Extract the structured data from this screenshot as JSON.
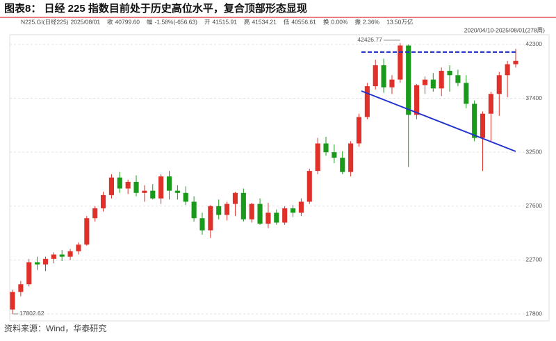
{
  "chart_data": {
    "type": "candlestick",
    "title": "图表8：  日经 225 指数目前处于历史高位水平，复合顶部形态显现",
    "info": [
      {
        "label": "N225.GI(日经225)",
        "value": "2025/08/01"
      },
      {
        "label": "收",
        "value": "40799.60"
      },
      {
        "label": "幅",
        "value": "-1.58%(-656.63)"
      },
      {
        "label": "开",
        "value": "41515.91"
      },
      {
        "label": "高",
        "value": "41534.21"
      },
      {
        "label": "低",
        "value": "40556.61"
      },
      {
        "label": "换",
        "value": "0.00%"
      },
      {
        "label": "振",
        "value": "2.36%"
      },
      {
        "label": "13.50万亿",
        "value": null
      }
    ],
    "range": "2020/04/10-2025/08/01(278周)",
    "source": "资料来源：Wind，华泰研究",
    "up_color": "#e0302a",
    "down_color": "#1a9a1a",
    "grid": true,
    "ylim": [
      17170,
      43180
    ],
    "yticks": [
      17800,
      22700,
      27600,
      32500,
      37400,
      42300
    ],
    "open": [
      18200,
      19800,
      20500,
      22500,
      22300,
      22800,
      23200,
      23000,
      23500,
      24100,
      26500,
      27400,
      28600,
      30200,
      29200,
      29800,
      28800,
      29000,
      28300,
      30300,
      29000,
      28800,
      28000,
      26500,
      25400,
      27600,
      26800,
      27800,
      28800,
      26400,
      27800,
      26000,
      27000,
      26100,
      27400,
      27000,
      28000,
      30800,
      33300,
      32500,
      32000,
      30700,
      33300,
      35700,
      38500,
      40400,
      38400,
      39100,
      42200,
      35900,
      38600,
      39100,
      38300,
      39900,
      39500,
      38800,
      36900,
      33800,
      36000,
      37800,
      39500,
      40500
    ],
    "high": [
      20000,
      20800,
      22800,
      23000,
      23000,
      23400,
      23600,
      23700,
      24300,
      26700,
      27600,
      28900,
      30500,
      30700,
      30000,
      30400,
      29500,
      29600,
      30500,
      30800,
      29500,
      29400,
      28500,
      27000,
      27700,
      28200,
      28000,
      28900,
      29200,
      27900,
      28300,
      27900,
      27300,
      27600,
      27700,
      28300,
      31000,
      33800,
      33900,
      33200,
      32600,
      33500,
      36000,
      38800,
      40900,
      41000,
      39500,
      42426.77,
      42300,
      38700,
      39400,
      39700,
      40200,
      40400,
      40000,
      39500,
      37200,
      36200,
      38000,
      39800,
      40800,
      41900
    ],
    "low": [
      17802.62,
      19400,
      20300,
      21800,
      21700,
      22400,
      22600,
      22700,
      23200,
      24000,
      26200,
      27100,
      28300,
      28800,
      28700,
      28500,
      28000,
      28200,
      27800,
      28200,
      28200,
      27700,
      26200,
      25000,
      24700,
      26400,
      26300,
      26700,
      26200,
      26100,
      25900,
      25600,
      25900,
      25900,
      26600,
      26700,
      27800,
      30500,
      32200,
      31500,
      30500,
      30300,
      33000,
      35500,
      38200,
      37900,
      37800,
      38800,
      31156,
      35500,
      37800,
      38000,
      37600,
      38000,
      38500,
      36500,
      33500,
      30793,
      33500,
      35800,
      37500,
      40200
    ],
    "close": [
      19800,
      20500,
      22500,
      22300,
      22800,
      23200,
      23000,
      23500,
      24100,
      26500,
      27400,
      28600,
      30200,
      29200,
      29800,
      28800,
      29000,
      28300,
      30300,
      29000,
      28800,
      28000,
      26500,
      25400,
      27600,
      26800,
      27800,
      28800,
      26400,
      27800,
      26000,
      27000,
      26100,
      27400,
      27000,
      28000,
      30800,
      33300,
      32500,
      32000,
      30700,
      33300,
      35700,
      38500,
      40400,
      38400,
      39100,
      42200,
      35900,
      38600,
      39100,
      38300,
      39900,
      39500,
      38800,
      36900,
      33800,
      36000,
      37800,
      39500,
      40500,
      40800
    ]
  }
}
